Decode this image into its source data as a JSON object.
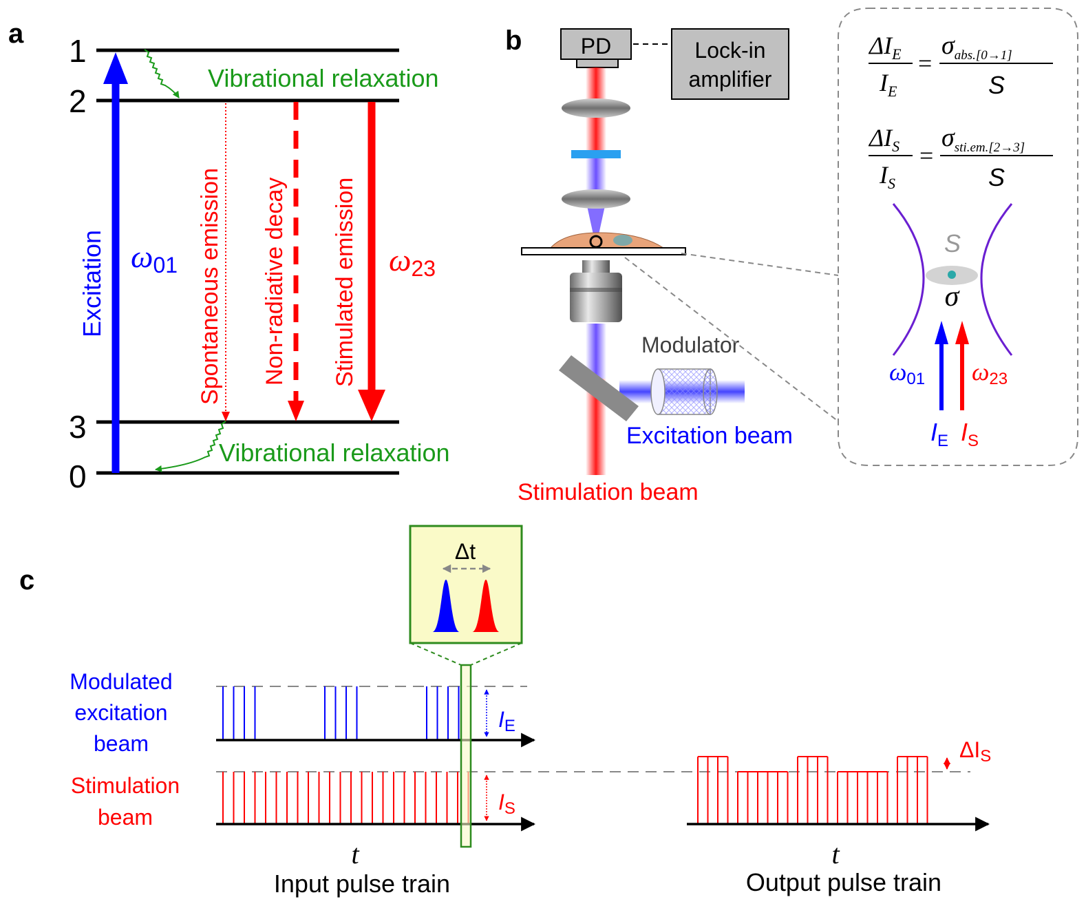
{
  "panel_a": {
    "letter": "a",
    "levels": [
      "1",
      "2",
      "3",
      "0"
    ],
    "vib_relax_top": "Vibrational relaxation",
    "vib_relax_bottom": "Vibrational relaxation",
    "excitation": "Excitation",
    "omega": "ω",
    "sub_01": "01",
    "sub_23": "23",
    "spontaneous": "Spontaneous emission",
    "nonradiative": "Non-radiative decay",
    "stimulated": "Stimulated emission"
  },
  "panel_b": {
    "letter": "b",
    "pd": "PD",
    "lockin_line1": "Lock-in",
    "lockin_line2": "amplifier",
    "modulator": "Modulator",
    "excitation_beam": "Excitation beam",
    "stimulation_beam": "Stimulation beam",
    "eq_delta": "ΔI",
    "eq_sub_E": "E",
    "eq_I": "I",
    "eq_sub_S": "S",
    "eq1_minus": "= −",
    "eq2_equals": "=",
    "eq_sigma": "σ",
    "eq1_sigma_sub": "abs.[0→1]",
    "eq2_sigma_sub": "sti.em.[2→3]",
    "eq_S": "S",
    "focus_S": "S",
    "focus_sigma": "σ",
    "omega": "ω",
    "sub_01": "01",
    "sub_23": "23",
    "I": "I",
    "sub_E": "E",
    "sub_S": "S"
  },
  "panel_c": {
    "letter": "c",
    "delta_t": "Δt",
    "mod_line1": "Modulated",
    "mod_line2": "excitation",
    "mod_line3": "beam",
    "stim_line1": "Stimulation",
    "stim_line2": "beam",
    "I": "I",
    "sub_E": "E",
    "sub_S": "S",
    "delta_I": "ΔI",
    "t_in": "t",
    "t_out": "t",
    "input_label": "Input pulse train",
    "output_label": "Output pulse train"
  },
  "colors": {
    "blue": "#0000ff",
    "red": "#ff0000",
    "green": "#1a9a1a",
    "black": "#000000",
    "gray": "#808080",
    "violet": "#6a1fd1",
    "inset_fill": "#fafac8",
    "inset_border": "#2e8b1e"
  }
}
